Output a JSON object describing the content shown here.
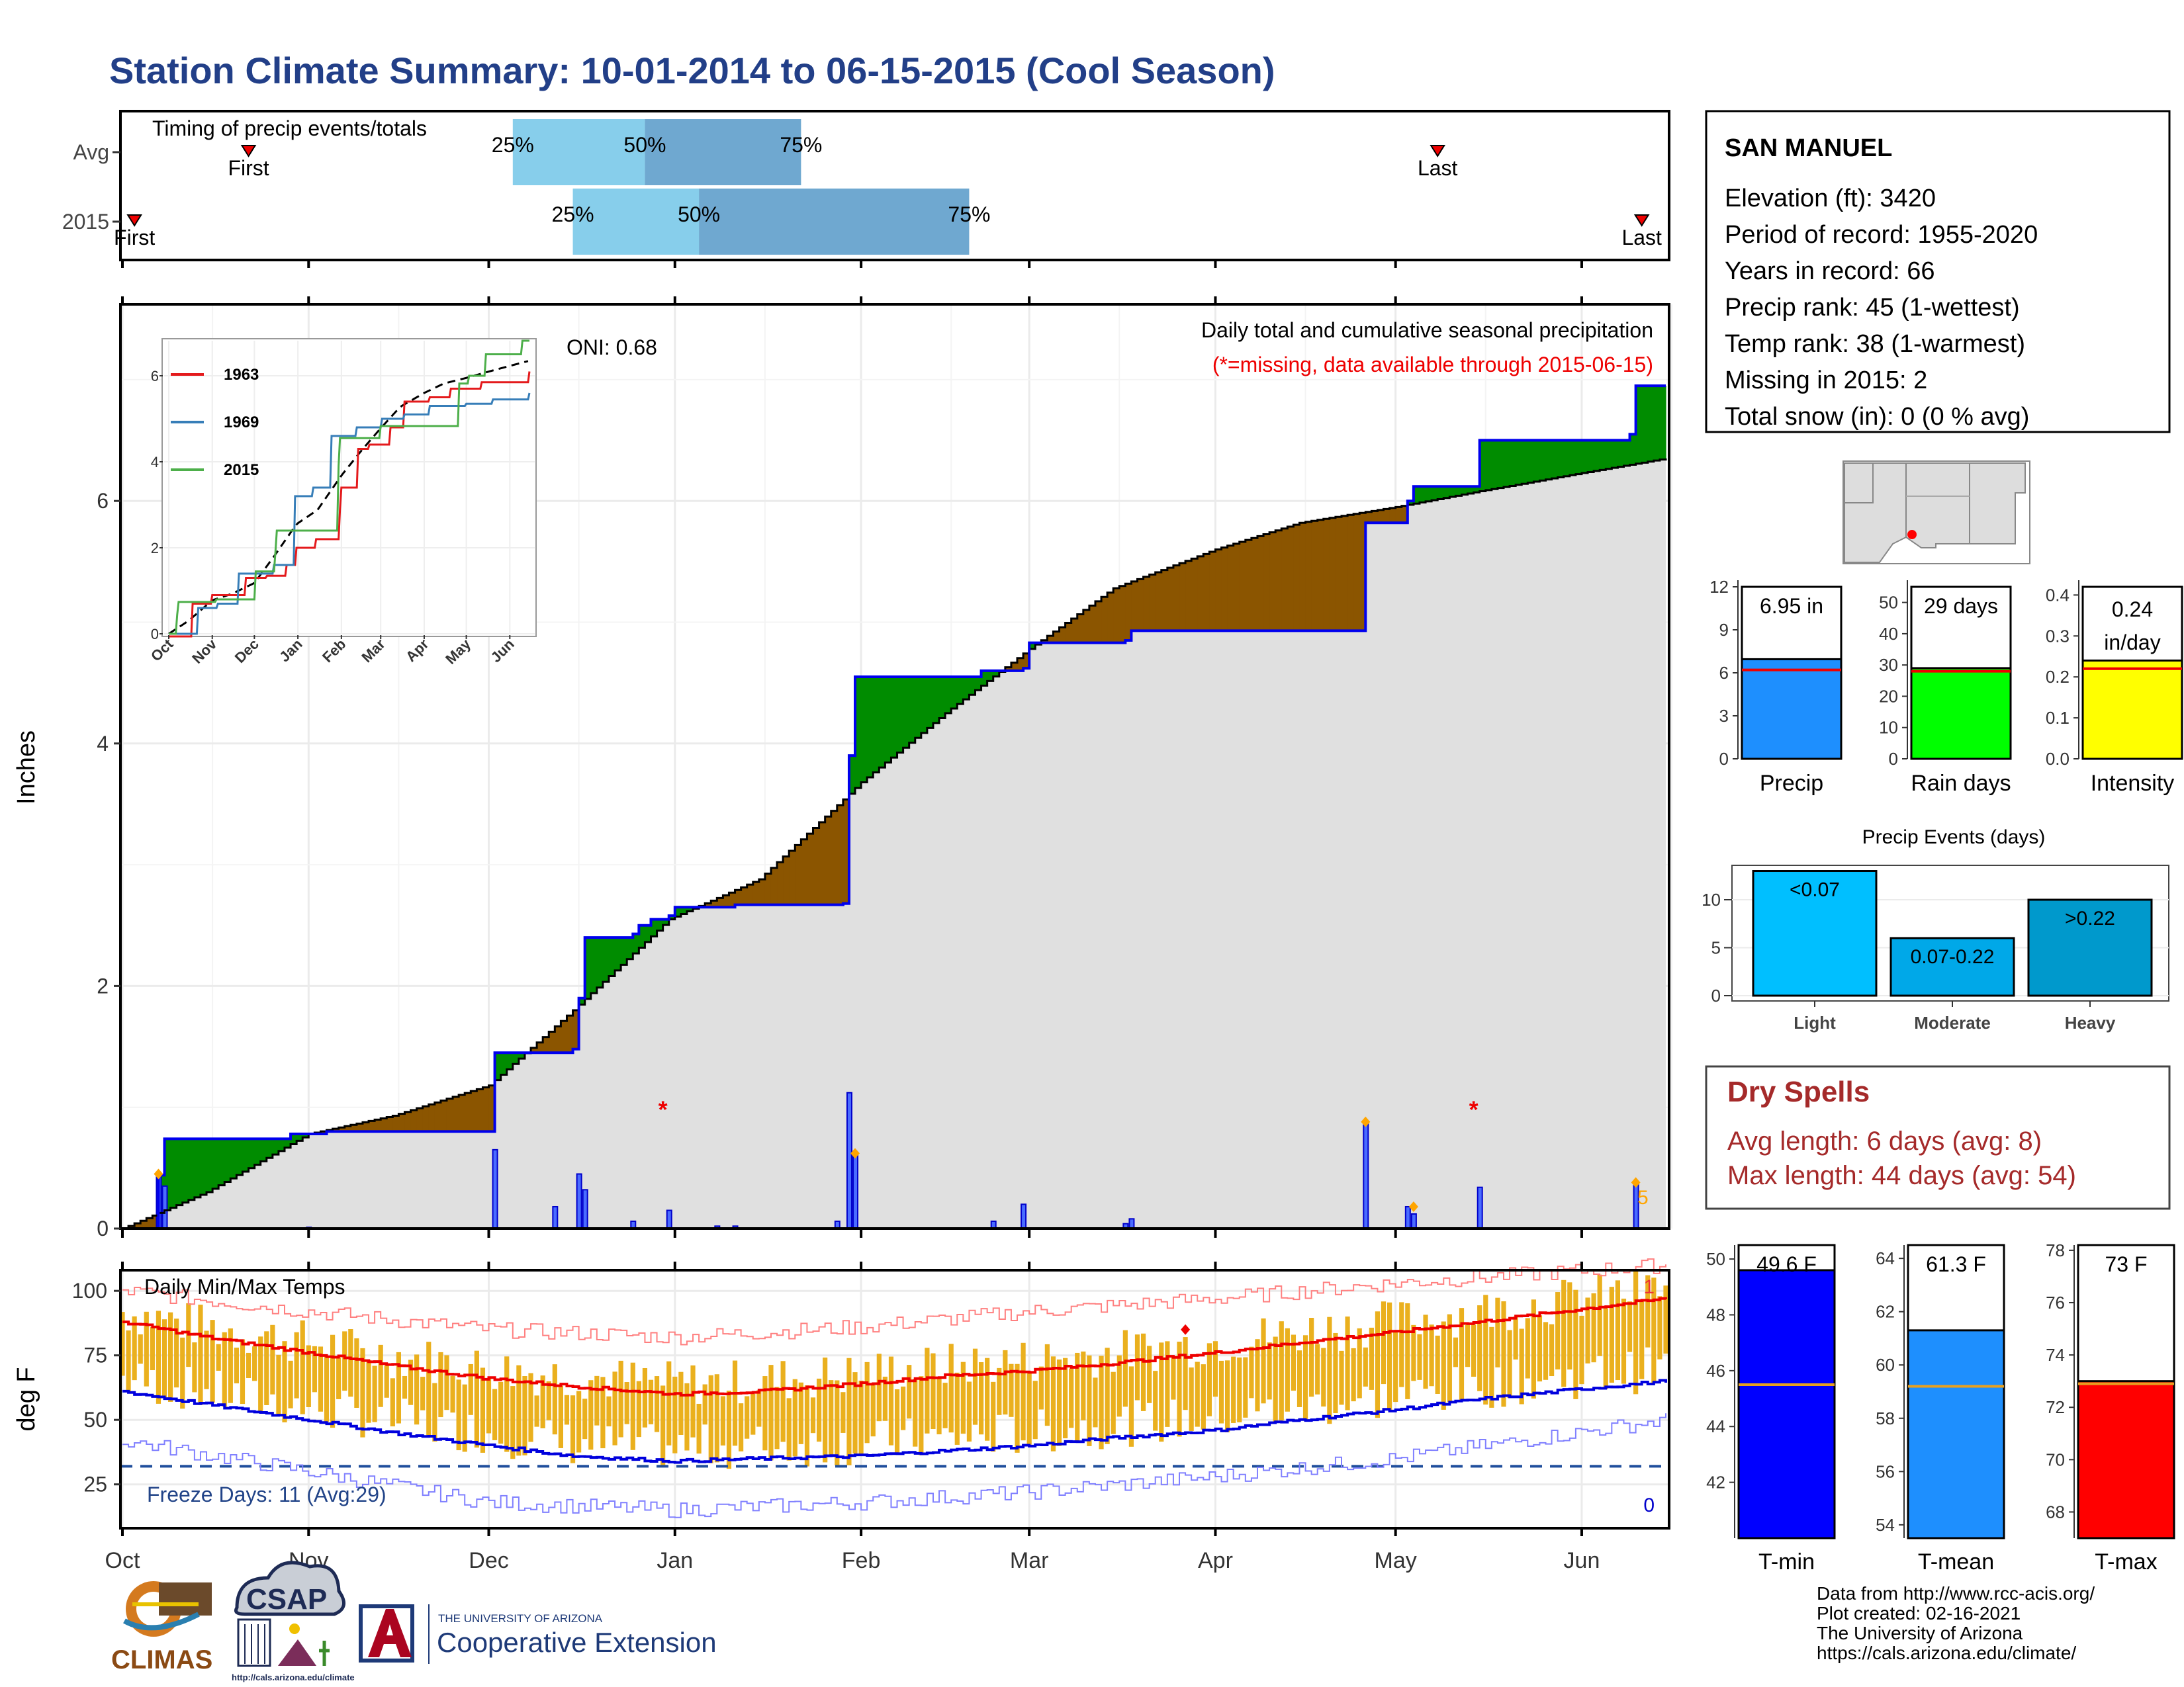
{
  "title": "Station Climate Summary: 10-01-2014 to 06-15-2015 (Cool Season)",
  "timing": {
    "label": "Timing of precip events/totals",
    "rows": [
      {
        "name": "Avg",
        "first": "10-22",
        "last": "05-08",
        "p25": "12-05",
        "p50": "12-27",
        "p75": "01-22",
        "first_label": "First",
        "last_label": "Last",
        "p25_label": "25%",
        "p50_label": "50%",
        "p75_label": "75%"
      },
      {
        "name": "2015",
        "first": "10-03",
        "last": "06-11",
        "p25": "12-15",
        "p50": "01-05",
        "p75": "02-19",
        "first_label": "First",
        "last_label": "Last",
        "p25_label": "25%",
        "p50_label": "50%",
        "p75_label": "75%"
      }
    ]
  },
  "station": {
    "name": "SAN MANUEL",
    "lines": [
      "Elevation (ft): 3420",
      "Period of record: 1955-2020",
      "Years in record: 66",
      "Precip rank: 45 (1-wettest)",
      "Temp rank: 38 (1-warmest)",
      "Missing in 2015: 2",
      "Total snow (in): 0 (0 % avg)"
    ]
  },
  "main_chart": {
    "oni": "ONI: 0.68",
    "caption": "Daily total and cumulative seasonal precipitation",
    "missing_note": "(*=missing, data available through 2015-06-15)",
    "ylabel": "Inches",
    "yticks": [
      "0",
      "2",
      "4",
      "6"
    ],
    "count_label": "5"
  },
  "months": [
    "Oct",
    "Nov",
    "Dec",
    "Jan",
    "Feb",
    "Mar",
    "Apr",
    "May",
    "Jun"
  ],
  "inset": {
    "yticks": [
      "0",
      "2",
      "4",
      "6"
    ],
    "series": [
      {
        "name": "1963",
        "color": "#e41a1c"
      },
      {
        "name": "1969",
        "color": "#377eb8"
      },
      {
        "name": "2015",
        "color": "#4daf4a"
      }
    ]
  },
  "temp_chart": {
    "label": "Daily Min/Max Temps",
    "ylabel": "deg F",
    "yticks": [
      "25",
      "50",
      "75",
      "100"
    ],
    "freeze": "Freeze Days: 11 (Avg:29)",
    "count_top": "1",
    "count_bottom": "0"
  },
  "mini_bars": [
    {
      "label": "Precip",
      "value_text": "6.95 in",
      "value": 6.95,
      "avg": 6.2,
      "max": 12,
      "ticks": [
        "0",
        "3",
        "6",
        "9",
        "12"
      ],
      "color": "#1e8ffe"
    },
    {
      "label": "Rain days",
      "value_text": "29 days",
      "value": 29,
      "avg": 28,
      "max": 55,
      "ticks": [
        "0",
        "10",
        "20",
        "30",
        "40",
        "50"
      ],
      "color": "#00ff00"
    },
    {
      "label": "Intensity",
      "value_text": "0.24 in/day",
      "value_line1": "0.24",
      "value_line2": "in/day",
      "value": 0.24,
      "avg": 0.22,
      "max": 0.42,
      "ticks": [
        "0.0",
        "0.1",
        "0.2",
        "0.3",
        "0.4"
      ],
      "color": "#ffff00"
    }
  ],
  "events": {
    "title": "Precip Events (days)",
    "yticks": [
      "0",
      "5",
      "10"
    ],
    "bars": [
      {
        "label": "Light",
        "range": "<0.07",
        "value": 13,
        "avg": 12.3,
        "color": "#00bfff"
      },
      {
        "label": "Moderate",
        "range": "0.07-0.22",
        "value": 6,
        "avg": 6.6,
        "color": "#00a8e8"
      },
      {
        "label": "Heavy",
        "range": ">0.22",
        "value": 10,
        "avg": 9.2,
        "color": "#0099cc"
      }
    ]
  },
  "dry_spells": {
    "title": "Dry Spells",
    "avg": "Avg length: 6 days (avg: 8)",
    "max": "Max length: 44 days (avg: 54)"
  },
  "temp_bars": [
    {
      "label": "T-min",
      "value_text": "49.6 F",
      "value": 49.6,
      "avg": 45.5,
      "min": 40,
      "max": 50.5,
      "ticks": [
        "42",
        "44",
        "46",
        "48",
        "50"
      ],
      "color": "#0000ff"
    },
    {
      "label": "T-mean",
      "value_text": "61.3 F",
      "value": 61.3,
      "avg": 59.2,
      "min": 53.5,
      "max": 64.5,
      "ticks": [
        "54",
        "56",
        "58",
        "60",
        "62",
        "64"
      ],
      "color": "#1e8ffe"
    },
    {
      "label": "T-max",
      "value_text": "73 F",
      "value": 73,
      "avg": 72.9,
      "min": 67,
      "max": 78.2,
      "ticks": [
        "68",
        "70",
        "72",
        "74",
        "76",
        "78"
      ],
      "color": "#ff0000"
    }
  ],
  "credits": [
    "Data from http://www.rcc-acis.org/",
    "Plot created: 02-16-2021",
    "The University of Arizona",
    "https://cals.arizona.edu/climate/"
  ],
  "logos": {
    "climas": "CLIMAS",
    "csap": "CSAP",
    "csap_url": "http://cals.arizona.edu/climate",
    "ua_small": "THE UNIVERSITY OF ARIZONA",
    "ua_ext": "Cooperative Extension"
  },
  "chart_data": {
    "type": "area",
    "title": "Daily total and cumulative seasonal precipitation",
    "ylabel": "Inches",
    "ylim": [
      0,
      7.5
    ],
    "x_start": "2014-10-01",
    "x_end": "2015-06-15",
    "cumulative_2015": [
      [
        "10-01",
        0
      ],
      [
        "10-07",
        0.44
      ],
      [
        "10-08",
        0.74
      ],
      [
        "10-29",
        0.78
      ],
      [
        "11-04",
        0.8
      ],
      [
        "12-01",
        0.8
      ],
      [
        "12-02",
        1.45
      ],
      [
        "12-15",
        1.48
      ],
      [
        "12-16",
        1.9
      ],
      [
        "12-17",
        2.4
      ],
      [
        "12-25",
        2.43
      ],
      [
        "12-26",
        2.5
      ],
      [
        "12-28",
        2.55
      ],
      [
        "12-31",
        2.58
      ],
      [
        "01-01",
        2.65
      ],
      [
        "01-10",
        2.65
      ],
      [
        "01-11",
        2.67
      ],
      [
        "01-29",
        2.68
      ],
      [
        "01-30",
        3.9
      ],
      [
        "01-31",
        4.55
      ],
      [
        "02-21",
        4.6
      ],
      [
        "02-28",
        4.62
      ],
      [
        "03-01",
        4.83
      ],
      [
        "03-17",
        4.85
      ],
      [
        "03-18",
        4.93
      ],
      [
        "04-25",
        4.93
      ],
      [
        "04-26",
        5.82
      ],
      [
        "05-03",
        6.0
      ],
      [
        "05-04",
        6.12
      ],
      [
        "05-14",
        6.12
      ],
      [
        "05-15",
        6.5
      ],
      [
        "06-09",
        6.55
      ],
      [
        "06-10",
        6.95
      ],
      [
        "06-15",
        6.95
      ]
    ],
    "cumulative_avg": [
      [
        "10-01",
        0
      ],
      [
        "10-15",
        0.3
      ],
      [
        "11-01",
        0.78
      ],
      [
        "11-15",
        0.93
      ],
      [
        "12-01",
        1.18
      ],
      [
        "12-15",
        1.8
      ],
      [
        "12-31",
        2.55
      ],
      [
        "01-15",
        2.88
      ],
      [
        "02-01",
        3.68
      ],
      [
        "02-15",
        4.25
      ],
      [
        "03-01",
        4.78
      ],
      [
        "03-15",
        5.28
      ],
      [
        "04-01",
        5.6
      ],
      [
        "04-15",
        5.82
      ],
      [
        "05-01",
        5.95
      ],
      [
        "05-15",
        6.08
      ],
      [
        "06-01",
        6.23
      ],
      [
        "06-15",
        6.35
      ]
    ],
    "daily_2015": [
      [
        "10-07",
        0.45
      ],
      [
        "10-08",
        0.35
      ],
      [
        "11-01",
        0.01
      ],
      [
        "12-02",
        0.65
      ],
      [
        "12-12",
        0.18
      ],
      [
        "12-16",
        0.45
      ],
      [
        "12-17",
        0.32
      ],
      [
        "12-25",
        0.06
      ],
      [
        "12-31",
        0.15
      ],
      [
        "01-08",
        0.02
      ],
      [
        "01-11",
        0.02
      ],
      [
        "01-28",
        0.06
      ],
      [
        "01-30",
        1.12
      ],
      [
        "01-31",
        0.62
      ],
      [
        "02-23",
        0.06
      ],
      [
        "02-28",
        0.2
      ],
      [
        "03-17",
        0.04
      ],
      [
        "03-18",
        0.08
      ],
      [
        "04-26",
        0.88
      ],
      [
        "05-03",
        0.18
      ],
      [
        "05-04",
        0.12
      ],
      [
        "05-15",
        0.34
      ],
      [
        "06-10",
        0.38
      ]
    ],
    "missing_days": [
      "12-30",
      "05-14"
    ],
    "inset_series": [
      {
        "name": "1963",
        "points": [
          [
            "10-01",
            -0.3
          ],
          [
            "10-18",
            0.7
          ],
          [
            "11-01",
            0.9
          ],
          [
            "11-25",
            1.3
          ],
          [
            "12-10",
            1.35
          ],
          [
            "12-24",
            1.6
          ],
          [
            "12-31",
            2.0
          ],
          [
            "01-14",
            2.2
          ],
          [
            "01-31",
            2.9
          ],
          [
            "02-01",
            3.4
          ],
          [
            "02-13",
            4.3
          ],
          [
            "02-21",
            4.4
          ],
          [
            "03-08",
            4.8
          ],
          [
            "03-18",
            5.4
          ],
          [
            "04-05",
            5.5
          ],
          [
            "04-20",
            5.7
          ],
          [
            "05-12",
            5.85
          ],
          [
            "06-15",
            6.1
          ]
        ]
      },
      {
        "name": "1969",
        "points": [
          [
            "10-01",
            0
          ],
          [
            "10-22",
            0.6
          ],
          [
            "11-05",
            0.7
          ],
          [
            "11-20",
            1.4
          ],
          [
            "12-15",
            1.6
          ],
          [
            "12-30",
            3.2
          ],
          [
            "01-12",
            3.4
          ],
          [
            "01-25",
            4.6
          ],
          [
            "02-12",
            4.8
          ],
          [
            "03-02",
            5.0
          ],
          [
            "03-18",
            5.1
          ],
          [
            "04-05",
            5.3
          ],
          [
            "05-01",
            5.35
          ],
          [
            "05-20",
            5.45
          ],
          [
            "06-15",
            5.6
          ]
        ]
      },
      {
        "name": "2015",
        "points": [
          [
            "10-01",
            0
          ],
          [
            "10-07",
            0.44
          ],
          [
            "10-08",
            0.74
          ],
          [
            "11-04",
            0.8
          ],
          [
            "12-02",
            1.45
          ],
          [
            "12-16",
            1.9
          ],
          [
            "12-17",
            2.4
          ],
          [
            "01-30",
            3.9
          ],
          [
            "01-31",
            4.55
          ],
          [
            "03-01",
            4.83
          ],
          [
            "04-26",
            5.82
          ],
          [
            "05-03",
            6.0
          ],
          [
            "05-15",
            6.5
          ],
          [
            "06-10",
            6.95
          ],
          [
            "06-15",
            6.95
          ]
        ]
      }
    ],
    "temps": {
      "avg_max": [
        [
          "10-01",
          88
        ],
        [
          "10-15",
          82
        ],
        [
          "11-01",
          76
        ],
        [
          "11-15",
          71
        ],
        [
          "12-01",
          66
        ],
        [
          "12-15",
          63
        ],
        [
          "01-01",
          60
        ],
        [
          "01-15",
          61
        ],
        [
          "02-01",
          64
        ],
        [
          "02-15",
          67
        ],
        [
          "03-01",
          69
        ],
        [
          "03-15",
          72
        ],
        [
          "04-01",
          76
        ],
        [
          "04-15",
          80
        ],
        [
          "05-01",
          84
        ],
        [
          "05-15",
          88
        ],
        [
          "06-01",
          93
        ],
        [
          "06-15",
          97
        ]
      ],
      "avg_min": [
        [
          "10-01",
          61
        ],
        [
          "10-15",
          56
        ],
        [
          "11-01",
          50
        ],
        [
          "11-15",
          45
        ],
        [
          "12-01",
          40
        ],
        [
          "12-15",
          36
        ],
        [
          "01-01",
          34
        ],
        [
          "01-15",
          35
        ],
        [
          "02-01",
          36
        ],
        [
          "02-15",
          38
        ],
        [
          "03-01",
          40
        ],
        [
          "03-15",
          43
        ],
        [
          "04-01",
          46
        ],
        [
          "04-15",
          50
        ],
        [
          "05-01",
          54
        ],
        [
          "05-15",
          58
        ],
        [
          "06-01",
          62
        ],
        [
          "06-15",
          65
        ]
      ],
      "record_max": [
        [
          "10-01",
          100
        ],
        [
          "11-01",
          92
        ],
        [
          "12-01",
          85
        ],
        [
          "01-01",
          82
        ],
        [
          "02-01",
          86
        ],
        [
          "03-01",
          92
        ],
        [
          "04-01",
          97
        ],
        [
          "05-01",
          103
        ],
        [
          "06-15",
          110
        ]
      ],
      "record_min": [
        [
          "10-01",
          42
        ],
        [
          "11-01",
          30
        ],
        [
          "12-01",
          18
        ],
        [
          "01-01",
          15
        ],
        [
          "02-01",
          18
        ],
        [
          "03-01",
          22
        ],
        [
          "04-01",
          28
        ],
        [
          "05-01",
          35
        ],
        [
          "06-15",
          50
        ]
      ],
      "freeze_line": 32,
      "ylim": [
        8,
        108
      ]
    }
  }
}
